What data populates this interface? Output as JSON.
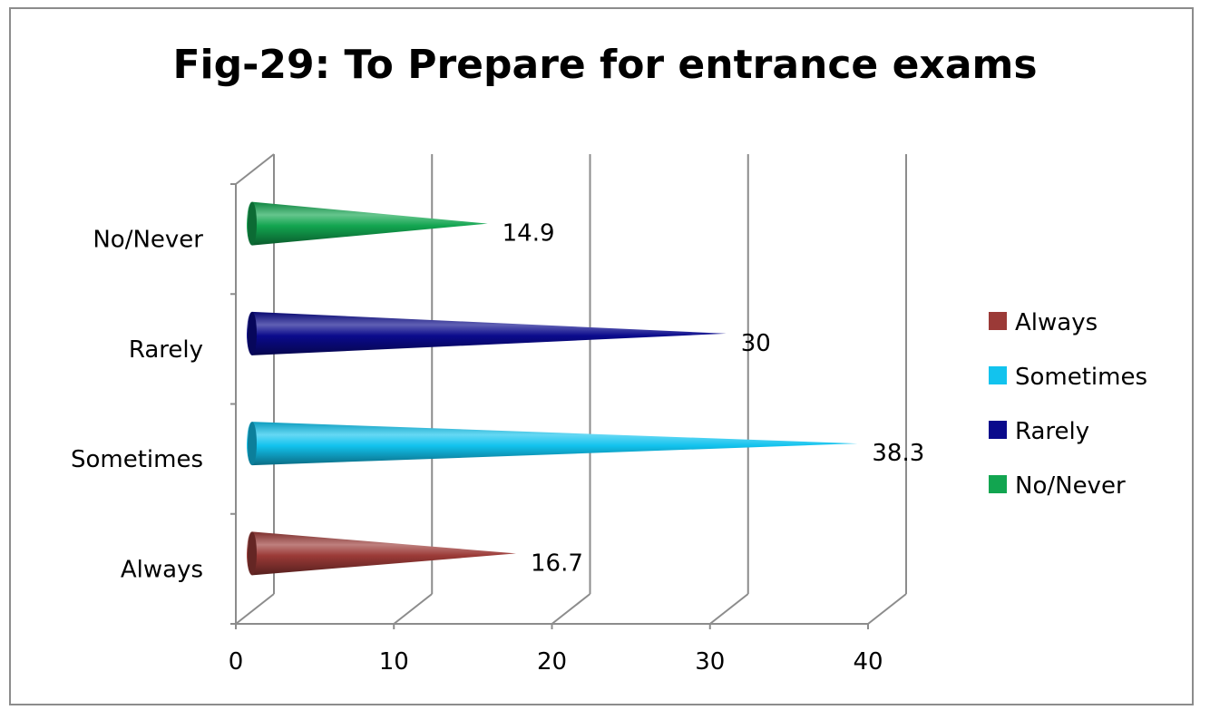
{
  "chart_data": {
    "type": "bar",
    "orientation": "horizontal",
    "style": "3d-cone",
    "title": "Fig-29: To Prepare for entrance exams",
    "categories": [
      "Always",
      "Sometimes",
      "Rarely",
      "No/Never"
    ],
    "values": [
      16.7,
      38.3,
      30,
      14.9
    ],
    "data_labels": [
      "16.7",
      "38.3",
      "30",
      "14.9"
    ],
    "colors": [
      "#9b3a37",
      "#12c3ee",
      "#0a0a8c",
      "#12a550"
    ],
    "xlim": [
      0,
      40
    ],
    "xticks": [
      0,
      10,
      20,
      30,
      40
    ],
    "xtick_labels": [
      "0",
      "10",
      "20",
      "30",
      "40"
    ],
    "grid": "vertical",
    "legend": {
      "position": "right",
      "entries": [
        "Always",
        "Sometimes",
        "Rarely",
        "No/Never"
      ]
    }
  }
}
